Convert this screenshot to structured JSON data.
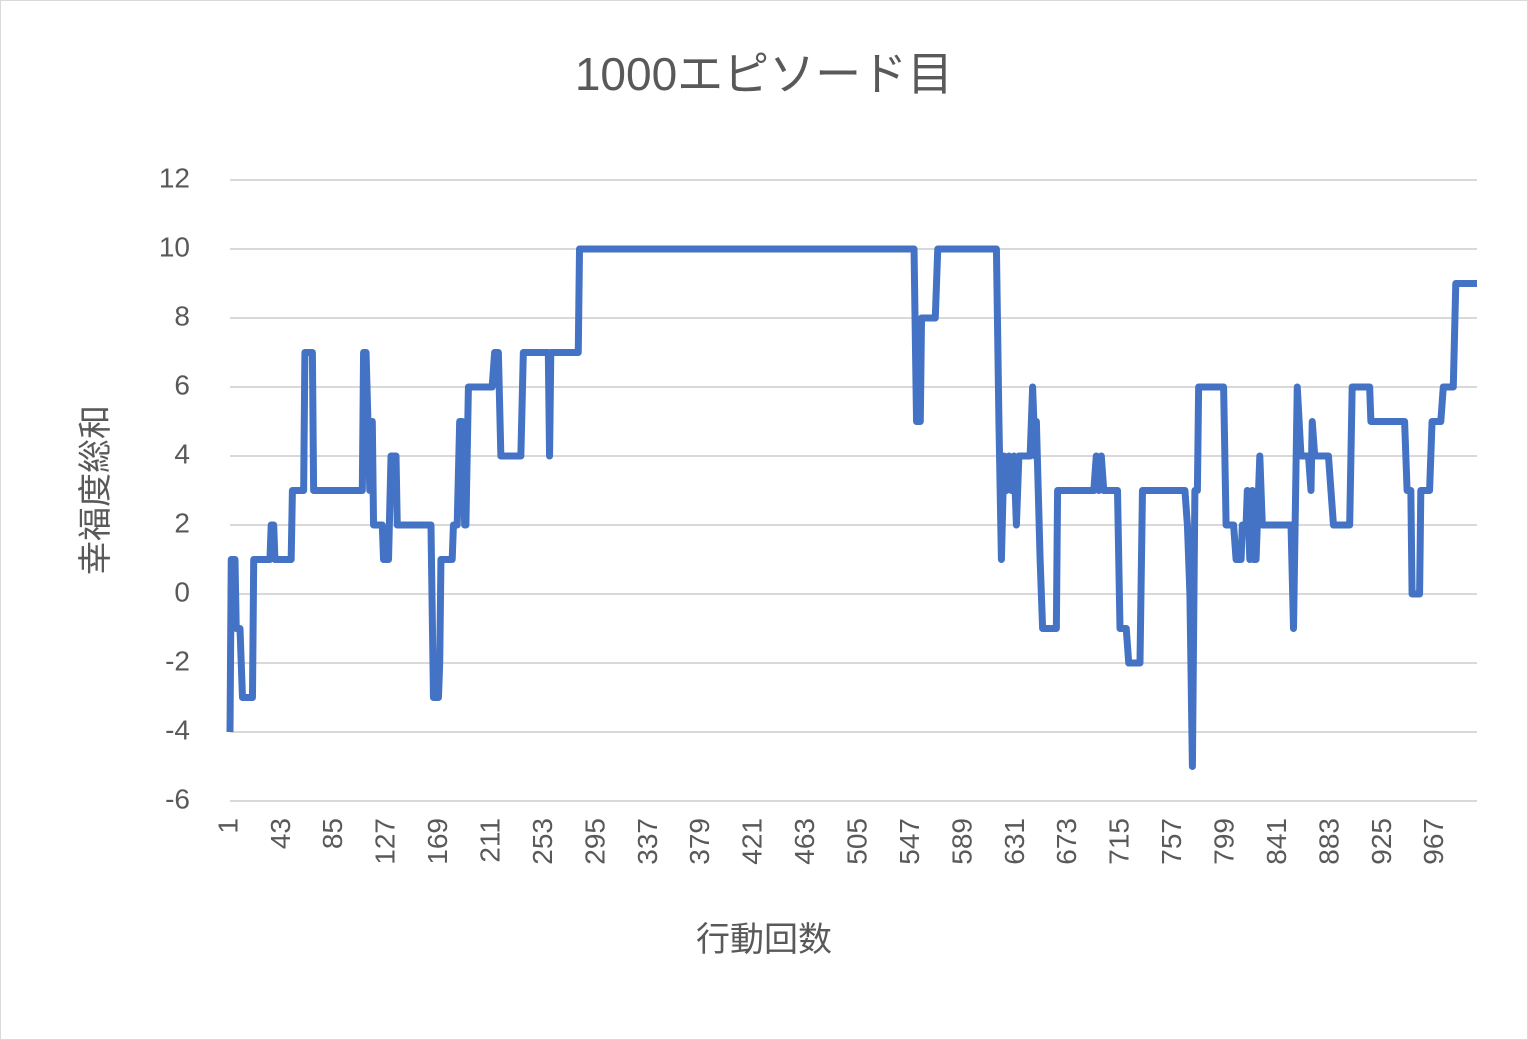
{
  "chart_data": {
    "type": "line",
    "title": "1000エピソード目",
    "x_label": "行動回数",
    "y_label": "幸福度総和",
    "xlim": [
      1,
      1000
    ],
    "xticks": [
      1,
      43,
      85,
      127,
      169,
      211,
      253,
      295,
      337,
      379,
      421,
      463,
      505,
      547,
      589,
      631,
      673,
      715,
      757,
      799,
      841,
      883,
      925,
      967
    ],
    "ylim": [
      -6,
      12
    ],
    "yticks": [
      -6,
      -4,
      -2,
      0,
      2,
      4,
      6,
      8,
      10,
      12
    ],
    "grid": true,
    "series": [
      {
        "color": "#4472c4",
        "x": [
          1,
          2,
          5,
          6,
          9,
          11,
          19,
          20,
          33,
          34,
          36,
          37,
          50,
          51,
          60,
          61,
          67,
          68,
          107,
          108,
          110,
          113,
          115,
          116,
          123,
          124,
          128,
          130,
          134,
          135,
          162,
          164,
          168,
          169,
          170,
          179,
          180,
          183,
          185,
          187,
          189,
          190,
          192,
          211,
          213,
          216,
          218,
          234,
          236,
          256,
          257,
          258,
          280,
          281,
          549,
          551,
          554,
          555,
          566,
          568,
          615,
          617,
          619,
          621,
          623,
          625,
          627,
          629,
          631,
          633,
          642,
          644,
          646,
          647,
          650,
          652,
          663,
          664,
          693,
          695,
          697,
          699,
          701,
          712,
          714,
          719,
          721,
          730,
          732,
          766,
          768,
          770,
          772,
          774,
          776,
          777,
          797,
          799,
          805,
          807,
          811,
          812,
          815,
          816,
          818,
          820,
          821,
          823,
          826,
          828,
          851,
          853,
          856,
          859,
          865,
          867,
          868,
          870,
          881,
          883,
          885,
          898,
          900,
          914,
          915,
          942,
          944,
          947,
          948,
          954,
          955,
          962,
          964,
          971,
          973,
          981,
          983,
          1000
        ],
        "values": [
          -4,
          1,
          1,
          -1,
          -1,
          -3,
          -3,
          1,
          1,
          2,
          2,
          1,
          1,
          3,
          3,
          7,
          7,
          3,
          3,
          7,
          7,
          3,
          5,
          2,
          2,
          1,
          1,
          4,
          4,
          2,
          2,
          -3,
          -3,
          -2,
          1,
          1,
          2,
          2,
          5,
          5,
          2,
          2,
          6,
          6,
          7,
          7,
          4,
          4,
          7,
          7,
          4,
          7,
          7,
          10,
          10,
          5,
          5,
          8,
          8,
          10,
          10,
          5,
          1,
          4,
          3,
          4,
          3,
          4,
          2,
          4,
          4,
          6,
          4,
          5,
          1,
          -1,
          -1,
          3,
          3,
          4,
          3,
          4,
          3,
          3,
          -1,
          -1,
          -2,
          -2,
          3,
          3,
          2,
          0,
          -5,
          3,
          3,
          6,
          6,
          2,
          2,
          1,
          1,
          2,
          2,
          3,
          1,
          3,
          1,
          1,
          4,
          2,
          2,
          -1,
          6,
          4,
          4,
          3,
          5,
          4,
          4,
          3,
          2,
          2,
          6,
          6,
          5,
          5,
          3,
          3,
          0,
          0,
          3,
          3,
          5,
          5,
          6,
          6,
          9,
          9
        ]
      }
    ]
  }
}
